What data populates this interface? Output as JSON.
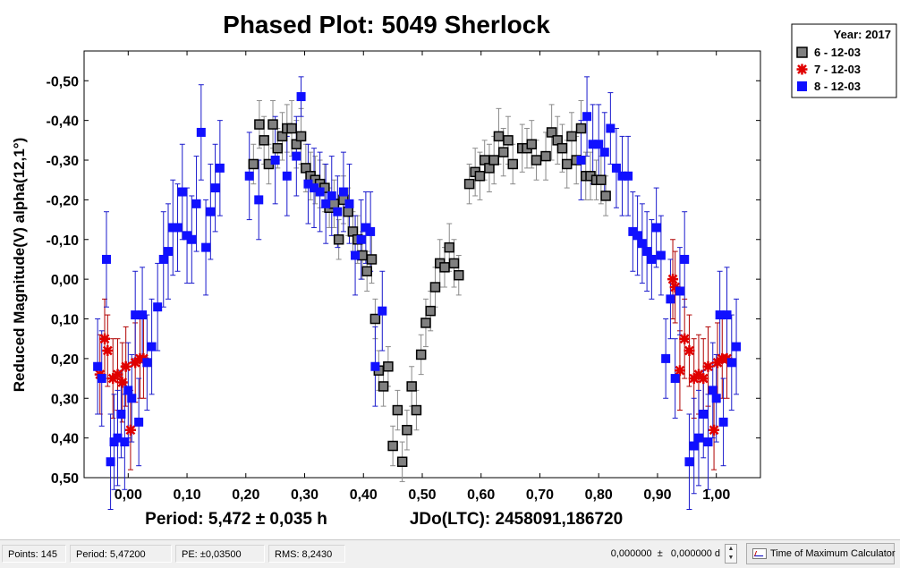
{
  "chart_data": {
    "type": "scatter",
    "title": "Phased Plot: 5049 Sherlock",
    "xlabel": "",
    "ylabel": "Reduced Magnitude(V) alpha(12,1°)",
    "xlim": [
      -0.075,
      1.075
    ],
    "ylim": [
      -0.575,
      0.5
    ],
    "y_inverted": true,
    "x_ticks": [
      0.0,
      0.1,
      0.2,
      0.3,
      0.4,
      0.5,
      0.6,
      0.7,
      0.8,
      0.9,
      1.0
    ],
    "x_tick_labels": [
      "0,00",
      "0,10",
      "0,20",
      "0,30",
      "0,40",
      "0,50",
      "0,60",
      "0,70",
      "0,80",
      "0,90",
      "1,00"
    ],
    "y_ticks": [
      -0.5,
      -0.4,
      -0.3,
      -0.2,
      -0.1,
      0.0,
      0.1,
      0.2,
      0.3,
      0.4,
      0.5
    ],
    "y_tick_labels": [
      "-0,50",
      "-0,40",
      "-0,30",
      "-0,20",
      "-0,10",
      "0,00",
      "0,10",
      "0,20",
      "0,30",
      "0,40",
      "0,50"
    ],
    "grid": false,
    "legend": {
      "title": "Year: 2017",
      "placement": "top-right"
    },
    "footer": {
      "period_text": "Period: 5,472 ± 0,035 h",
      "jdo_text": "JDo(LTC): 2458091,186720"
    },
    "series": [
      {
        "name": "6 - 12-03",
        "marker": "gray-square",
        "color": "#808080",
        "points": [
          [
            0.213,
            -0.29,
            0.05
          ],
          [
            0.223,
            -0.39,
            0.06
          ],
          [
            0.231,
            -0.35,
            0.06
          ],
          [
            0.239,
            -0.29,
            0.05
          ],
          [
            0.246,
            -0.39,
            0.06
          ],
          [
            0.254,
            -0.33,
            0.05
          ],
          [
            0.262,
            -0.36,
            0.06
          ],
          [
            0.27,
            -0.38,
            0.06
          ],
          [
            0.278,
            -0.38,
            0.07
          ],
          [
            0.286,
            -0.34,
            0.06
          ],
          [
            0.294,
            -0.36,
            0.07
          ],
          [
            0.302,
            -0.28,
            0.06
          ],
          [
            0.31,
            -0.26,
            0.06
          ],
          [
            0.318,
            -0.25,
            0.06
          ],
          [
            0.326,
            -0.24,
            0.06
          ],
          [
            0.334,
            -0.23,
            0.06
          ],
          [
            0.342,
            -0.18,
            0.05
          ],
          [
            0.35,
            -0.19,
            0.06
          ],
          [
            0.358,
            -0.1,
            0.05
          ],
          [
            0.366,
            -0.2,
            0.06
          ],
          [
            0.374,
            -0.17,
            0.06
          ],
          [
            0.382,
            -0.12,
            0.05
          ],
          [
            0.39,
            -0.1,
            0.06
          ],
          [
            0.398,
            -0.06,
            0.06
          ],
          [
            0.406,
            -0.02,
            0.05
          ],
          [
            0.414,
            -0.05,
            0.06
          ],
          [
            0.42,
            0.1,
            0.05
          ],
          [
            0.426,
            0.23,
            0.05
          ],
          [
            0.434,
            0.27,
            0.05
          ],
          [
            0.442,
            0.22,
            0.05
          ],
          [
            0.45,
            0.42,
            0.05
          ],
          [
            0.458,
            0.33,
            0.05
          ],
          [
            0.466,
            0.46,
            0.05
          ],
          [
            0.474,
            0.38,
            0.05
          ],
          [
            0.482,
            0.27,
            0.05
          ],
          [
            0.49,
            0.33,
            0.05
          ],
          [
            0.498,
            0.19,
            0.05
          ],
          [
            0.506,
            0.11,
            0.06
          ],
          [
            0.514,
            0.08,
            0.05
          ],
          [
            0.522,
            0.02,
            0.05
          ],
          [
            0.53,
            -0.04,
            0.06
          ],
          [
            0.538,
            -0.03,
            0.05
          ],
          [
            0.546,
            -0.08,
            0.06
          ],
          [
            0.554,
            -0.04,
            0.06
          ],
          [
            0.562,
            -0.01,
            0.05
          ],
          [
            0.58,
            -0.24,
            0.05
          ],
          [
            0.59,
            -0.27,
            0.06
          ],
          [
            0.598,
            -0.26,
            0.06
          ],
          [
            0.606,
            -0.3,
            0.05
          ],
          [
            0.614,
            -0.28,
            0.06
          ],
          [
            0.622,
            -0.3,
            0.06
          ],
          [
            0.63,
            -0.36,
            0.07
          ],
          [
            0.638,
            -0.32,
            0.06
          ],
          [
            0.646,
            -0.35,
            0.06
          ],
          [
            0.654,
            -0.29,
            0.05
          ],
          [
            0.67,
            -0.33,
            0.06
          ],
          [
            0.678,
            -0.33,
            0.05
          ],
          [
            0.686,
            -0.34,
            0.06
          ],
          [
            0.694,
            -0.3,
            0.05
          ],
          [
            0.71,
            -0.31,
            0.06
          ],
          [
            0.72,
            -0.37,
            0.07
          ],
          [
            0.73,
            -0.35,
            0.06
          ],
          [
            0.738,
            -0.33,
            0.06
          ],
          [
            0.746,
            -0.29,
            0.06
          ],
          [
            0.754,
            -0.36,
            0.06
          ],
          [
            0.762,
            -0.3,
            0.06
          ],
          [
            0.77,
            -0.38,
            0.07
          ],
          [
            0.778,
            -0.26,
            0.06
          ],
          [
            0.786,
            -0.26,
            0.06
          ],
          [
            0.796,
            -0.25,
            0.05
          ],
          [
            0.804,
            -0.25,
            0.06
          ],
          [
            0.812,
            -0.21,
            0.05
          ]
        ]
      },
      {
        "name": "7 - 12-03",
        "marker": "red-asterisk",
        "color": "#e00000",
        "points": [
          [
            -0.048,
            0.24,
            0.1
          ],
          [
            -0.04,
            0.15,
            0.1
          ],
          [
            -0.035,
            0.18,
            0.09
          ],
          [
            -0.026,
            0.25,
            0.1
          ],
          [
            -0.018,
            0.24,
            0.09
          ],
          [
            -0.01,
            0.26,
            0.1
          ],
          [
            -0.004,
            0.22,
            0.1
          ],
          [
            0.004,
            0.38,
            0.1
          ],
          [
            0.012,
            0.21,
            0.1
          ],
          [
            0.02,
            0.2,
            0.1
          ],
          [
            0.026,
            0.2,
            0.1
          ],
          [
            0.926,
            0.0,
            0.1
          ],
          [
            0.93,
            0.02,
            0.09
          ],
          [
            0.938,
            0.23,
            0.1
          ],
          [
            0.946,
            0.15,
            0.1
          ],
          [
            0.954,
            0.18,
            0.09
          ],
          [
            0.962,
            0.25,
            0.1
          ],
          [
            0.97,
            0.24,
            0.1
          ],
          [
            0.978,
            0.25,
            0.1
          ],
          [
            0.986,
            0.22,
            0.1
          ],
          [
            0.996,
            0.38,
            0.1
          ],
          [
            1.002,
            0.21,
            0.1
          ],
          [
            1.01,
            0.2,
            0.1
          ],
          [
            1.018,
            0.2,
            0.1
          ]
        ]
      },
      {
        "name": "8 - 12-03",
        "marker": "blue-square",
        "color": "#1010ff",
        "points": [
          [
            -0.052,
            0.22,
            0.12
          ],
          [
            -0.045,
            0.25,
            0.12
          ],
          [
            -0.037,
            -0.05,
            0.12
          ],
          [
            -0.03,
            0.46,
            0.12
          ],
          [
            -0.024,
            0.41,
            0.12
          ],
          [
            -0.018,
            0.4,
            0.12
          ],
          [
            -0.012,
            0.34,
            0.11
          ],
          [
            -0.006,
            0.41,
            0.12
          ],
          [
            0.0,
            0.28,
            0.12
          ],
          [
            0.006,
            0.3,
            0.11
          ],
          [
            0.012,
            0.09,
            0.11
          ],
          [
            0.018,
            0.36,
            0.11
          ],
          [
            0.024,
            0.09,
            0.12
          ],
          [
            0.032,
            0.21,
            0.12
          ],
          [
            0.04,
            0.17,
            0.12
          ],
          [
            0.05,
            0.07,
            0.11
          ],
          [
            0.06,
            -0.05,
            0.12
          ],
          [
            0.068,
            -0.07,
            0.12
          ],
          [
            0.076,
            -0.13,
            0.12
          ],
          [
            0.084,
            -0.13,
            0.11
          ],
          [
            0.092,
            -0.22,
            0.12
          ],
          [
            0.1,
            -0.11,
            0.12
          ],
          [
            0.108,
            -0.1,
            0.11
          ],
          [
            0.116,
            -0.19,
            0.12
          ],
          [
            0.124,
            -0.37,
            0.12
          ],
          [
            0.132,
            -0.08,
            0.12
          ],
          [
            0.14,
            -0.17,
            0.12
          ],
          [
            0.148,
            -0.23,
            0.11
          ],
          [
            0.156,
            -0.28,
            0.12
          ],
          [
            0.206,
            -0.26,
            0.11
          ],
          [
            0.222,
            -0.2,
            0.1
          ],
          [
            0.25,
            -0.3,
            0.11
          ],
          [
            0.27,
            -0.26,
            0.1
          ],
          [
            0.286,
            -0.31,
            0.1
          ],
          [
            0.294,
            -0.46,
            0.05
          ],
          [
            0.306,
            -0.24,
            0.1
          ],
          [
            0.316,
            -0.23,
            0.1
          ],
          [
            0.326,
            -0.22,
            0.1
          ],
          [
            0.336,
            -0.19,
            0.1
          ],
          [
            0.346,
            -0.21,
            0.1
          ],
          [
            0.356,
            -0.17,
            0.09
          ],
          [
            0.366,
            -0.22,
            0.1
          ],
          [
            0.376,
            -0.19,
            0.1
          ],
          [
            0.386,
            -0.06,
            0.1
          ],
          [
            0.396,
            -0.1,
            0.1
          ],
          [
            0.404,
            -0.13,
            0.09
          ],
          [
            0.412,
            -0.12,
            0.1
          ],
          [
            0.42,
            0.22,
            0.1
          ],
          [
            0.432,
            0.08,
            0.1
          ],
          [
            0.77,
            -0.3,
            0.1
          ],
          [
            0.78,
            -0.41,
            0.1
          ],
          [
            0.79,
            -0.34,
            0.1
          ],
          [
            0.8,
            -0.34,
            0.1
          ],
          [
            0.81,
            -0.32,
            0.1
          ],
          [
            0.82,
            -0.38,
            0.09
          ],
          [
            0.83,
            -0.28,
            0.1
          ],
          [
            0.84,
            -0.26,
            0.1
          ],
          [
            0.85,
            -0.26,
            0.1
          ],
          [
            0.858,
            -0.12,
            0.1
          ],
          [
            0.866,
            -0.11,
            0.1
          ],
          [
            0.874,
            -0.09,
            0.1
          ],
          [
            0.882,
            -0.07,
            0.1
          ],
          [
            0.89,
            -0.05,
            0.1
          ],
          [
            0.898,
            -0.13,
            0.1
          ],
          [
            0.906,
            -0.06,
            0.1
          ],
          [
            0.914,
            0.2,
            0.1
          ],
          [
            0.922,
            0.05,
            0.1
          ],
          [
            0.93,
            0.25,
            0.1
          ],
          [
            0.938,
            0.03,
            0.11
          ],
          [
            0.946,
            -0.05,
            0.12
          ],
          [
            0.954,
            0.46,
            0.12
          ],
          [
            0.962,
            0.42,
            0.12
          ],
          [
            0.97,
            0.4,
            0.12
          ],
          [
            0.978,
            0.34,
            0.11
          ],
          [
            0.986,
            0.41,
            0.12
          ],
          [
            0.994,
            0.28,
            0.12
          ],
          [
            1.0,
            0.3,
            0.11
          ],
          [
            1.006,
            0.09,
            0.11
          ],
          [
            1.012,
            0.36,
            0.11
          ],
          [
            1.018,
            0.09,
            0.12
          ],
          [
            1.026,
            0.21,
            0.12
          ],
          [
            1.034,
            0.17,
            0.12
          ]
        ]
      }
    ]
  },
  "status_bar": {
    "points": "Points: 145",
    "period": "Period: 5,47200",
    "pe": "PE: ±0,03500",
    "rms": "RMS: 8,2430",
    "toe_value": "0,000000  ±   0,000000 d",
    "tmc_button": "Time of Maximum Calculator"
  }
}
